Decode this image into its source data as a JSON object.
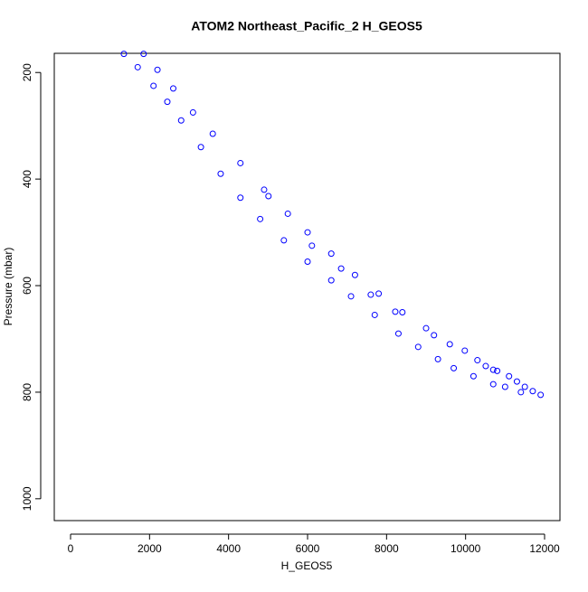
{
  "chart_data": {
    "type": "scatter",
    "title": "ATOM2 Northeast_Pacific_2 H_GEOS5",
    "x_label": "H_GEOS5",
    "y_label": "Pressure (mbar)",
    "xlim": [
      -412,
      12389
    ],
    "ylim": [
      164,
      1041
    ],
    "y_reversed": true,
    "xticks": [
      0,
      2000,
      4000,
      6000,
      8000,
      10000,
      12000
    ],
    "yticks": [
      200,
      400,
      600,
      800,
      1000
    ],
    "color": "#0000ff",
    "x": [
      1350,
      1700,
      2100,
      2450,
      2800,
      3300,
      3800,
      4300,
      4800,
      5400,
      6000,
      6600,
      7100,
      7700,
      8300,
      8800,
      9300,
      9700,
      10200,
      10700,
      1850,
      2200,
      2600,
      3100,
      3600,
      4300,
      4900,
      5500,
      6000,
      6600,
      7200,
      7800,
      8400,
      9000,
      9600,
      10300,
      10700,
      10800,
      11100,
      11300,
      11500,
      11700,
      11900,
      11000,
      11400,
      5010,
      6110,
      6850,
      7600,
      8220,
      9200,
      9980,
      10510
    ],
    "y": [
      165,
      190,
      225,
      255,
      290,
      340,
      390,
      435,
      475,
      515,
      555,
      590,
      620,
      655,
      690,
      715,
      738,
      755,
      770,
      785,
      165,
      195,
      230,
      275,
      315,
      370,
      420,
      465,
      500,
      540,
      580,
      615,
      650,
      680,
      710,
      740,
      758,
      760,
      770,
      780,
      790,
      798,
      805,
      790,
      800,
      432,
      525,
      568,
      617,
      649,
      693,
      722,
      751
    ]
  }
}
